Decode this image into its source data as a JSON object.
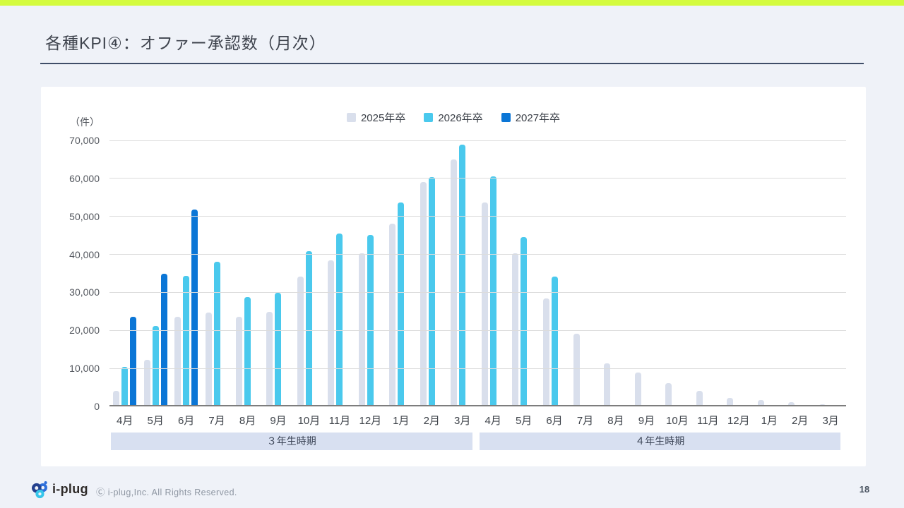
{
  "slide": {
    "title": "各種KPI④：オファー承認数（月次）",
    "page_number": "18",
    "footer": {
      "logo_text": "i-plug",
      "divider": "|",
      "copyright": "Ⓒ i-plug,Inc. All Rights Reserved."
    }
  },
  "colors": {
    "background": "#eff2f8",
    "accent_bar": "#d4fb3e",
    "card": "#ffffff",
    "title_text": "#3e434d",
    "title_rule": "#3f4e68",
    "gridline": "#dcdcdc",
    "baseline": "#7d7d7d",
    "y_axis_text": "#53575e",
    "x_axis_text": "#3e434a",
    "legend_text": "#3a3f47",
    "band_bg": "#d8e0f1",
    "band_text": "#3c4557",
    "copyright_text": "#8e96a2",
    "divider_text": "#c5ccd6",
    "page_number_text": "#4b5562",
    "logo_text": "#2f2b29",
    "logo_navy": "#24418e",
    "logo_blue": "#2e6fd9",
    "logo_cyan": "#36c6ea"
  },
  "chart_data": {
    "type": "bar",
    "title": "各種KPI④：オファー承認数（月次）",
    "unit_label": "（件）",
    "ylim": [
      0,
      70000
    ],
    "ytick_step": 10000,
    "ytick_labels": [
      "0",
      "10,000",
      "20,000",
      "30,000",
      "40,000",
      "50,000",
      "60,000",
      "70,000"
    ],
    "grid": true,
    "legend_position": "top-center",
    "categories": [
      "4月",
      "5月",
      "6月",
      "7月",
      "8月",
      "9月",
      "10月",
      "11月",
      "12月",
      "1月",
      "2月",
      "3月",
      "4月",
      "5月",
      "6月",
      "7月",
      "8月",
      "9月",
      "10月",
      "11月",
      "12月",
      "1月",
      "2月",
      "3月"
    ],
    "series": [
      {
        "name": "2025年卒",
        "key": "grad-2025",
        "color": "#d9dfec",
        "values": [
          4000,
          12200,
          23600,
          24700,
          23600,
          24800,
          34100,
          38500,
          40300,
          48100,
          59100,
          65000,
          53600,
          40300,
          28400,
          19200,
          11400,
          9000,
          6100,
          4100,
          2300,
          1600,
          1100,
          600
        ]
      },
      {
        "name": "2026年卒",
        "key": "grad-2026",
        "color": "#4ac9ed",
        "values": [
          10400,
          21200,
          34400,
          38100,
          28700,
          29900,
          40900,
          45500,
          45200,
          53600,
          60400,
          68900,
          60600,
          44500,
          34200,
          null,
          null,
          null,
          null,
          null,
          null,
          null,
          null,
          null
        ]
      },
      {
        "name": "2027年卒",
        "key": "grad-2027",
        "color": "#0b76d6",
        "values": [
          23500,
          35000,
          51800,
          null,
          null,
          null,
          null,
          null,
          null,
          null,
          null,
          null,
          null,
          null,
          null,
          null,
          null,
          null,
          null,
          null,
          null,
          null,
          null,
          null
        ]
      }
    ],
    "period_bands": [
      {
        "label": "３年生時期",
        "start": 0,
        "end": 11
      },
      {
        "label": "４年生時期",
        "start": 12,
        "end": 23
      }
    ]
  }
}
